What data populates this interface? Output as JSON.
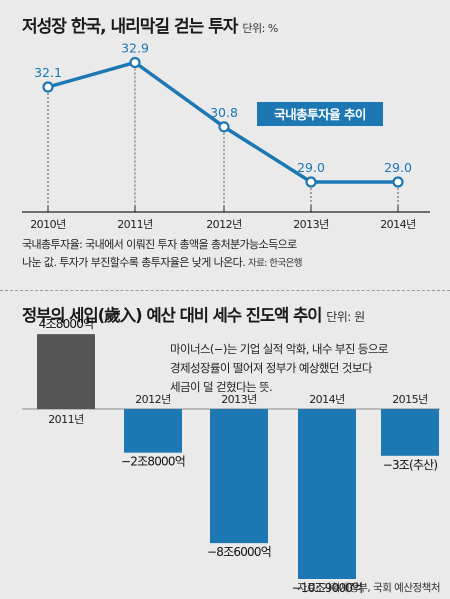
{
  "top": {
    "title": "저성장 한국, 내리막길 걷는 투자",
    "unit": "단위: %",
    "callout": "국내총투자율 추이",
    "note_line1": "국내총투자율: 국내에서 이뤄진 투자 총액을 총처분가능소득으로",
    "note_line2": "나눈 값. 투자가 부진할수록 총투자율은 낮게 나온다.",
    "source": "자료: 한국은행"
  },
  "bottom": {
    "title": "정부의 세입(歲入) 예산 대비 세수 진도액 추이",
    "unit": "단위: 원",
    "annot_line1": "마이너스(−)는 기업 실적 악화, 내수 부진 등으로",
    "annot_line2": "경제성장률이 떨어져 정부가 예상했던 것보다",
    "annot_line3": "세금이 덜 걷혔다는 뜻.",
    "source": "자료: 기획재정부, 국회 예산정책처"
  },
  "colors": {
    "blue": "#1c77b3",
    "dark": "#555555",
    "axis": "#222222",
    "grid": "#555555"
  },
  "chart_data": [
    {
      "type": "line",
      "title": "저성장 한국, 내리막길 걷는 투자",
      "categories": [
        "2010년",
        "2011년",
        "2012년",
        "2013년",
        "2014년"
      ],
      "values": [
        32.1,
        32.9,
        30.8,
        29.0,
        29.0
      ],
      "labels": [
        "32.1",
        "32.9",
        "30.8",
        "29.0",
        "29.0"
      ],
      "series_name": "국내총투자율 추이",
      "ylabel": "단위: %"
    },
    {
      "type": "bar",
      "title": "정부의 세입(歲入) 예산 대비 세수 진도액 추이",
      "categories": [
        "2011년",
        "2012년",
        "2013년",
        "2014년",
        "2015년"
      ],
      "values": [
        48000,
        -28000,
        -86000,
        -109000,
        -30000
      ],
      "labels": [
        "4조8000억",
        "−2조8000억",
        "−8조6000억",
        "−10조9000억",
        "−3조(추산)"
      ],
      "ylabel": "단위: 원"
    }
  ]
}
